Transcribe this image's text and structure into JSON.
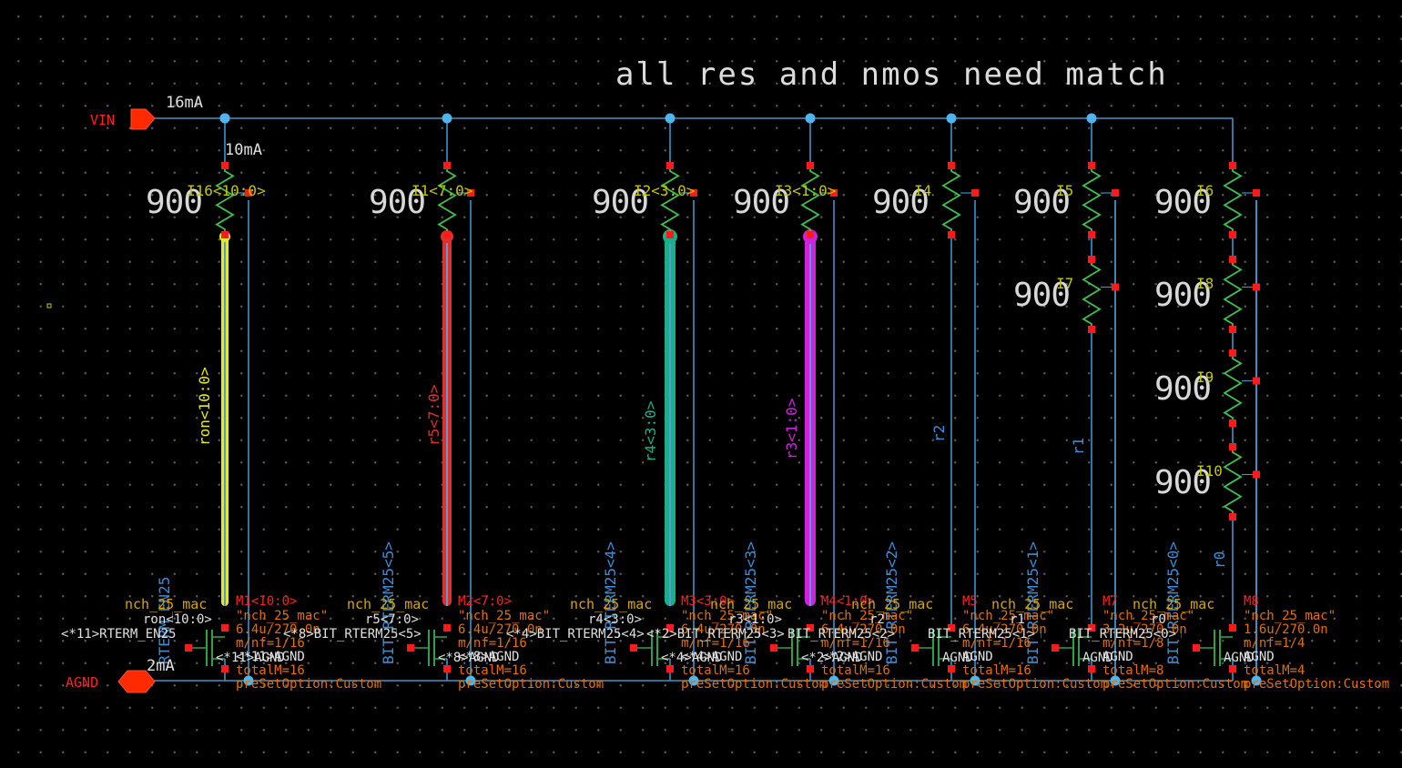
{
  "title": "all res and nmos need match",
  "pins": {
    "vin": "VIN",
    "agnd": "AGND"
  },
  "currents": {
    "top": "16mA",
    "branch": "10mA",
    "bottom": "2mA"
  },
  "colors": {
    "wire": "#3d93c9",
    "node": "#4fb5ef",
    "pin_dot": "#ff1a1a",
    "pin_fill": "#ff2a00",
    "res_value": "#d8d8d8",
    "res_name": "#c4c400",
    "res_body": "#3fbf4f",
    "mos_symbol": "#2ea04a",
    "mos_type": "#d6a600",
    "mos_name": "#ff2020",
    "mos_param": "#e07000",
    "text_white": "#e0e0e0",
    "bit_label": "#3a8fd8",
    "yellow": "#e8e820",
    "red": "#e0302a",
    "teal": "#18b08a",
    "magenta": "#d020e0"
  },
  "resistor_value": "900",
  "resistors": [
    {
      "name": "I16<10:0>",
      "value": "900"
    },
    {
      "name": "I1<7:0>",
      "value": "900"
    },
    {
      "name": "I2<3:0>",
      "value": "900"
    },
    {
      "name": "I3<1:0>",
      "value": "900"
    },
    {
      "name": "I4",
      "value": "900"
    },
    {
      "name": "I5",
      "value": "900"
    },
    {
      "name": "I7",
      "value": "900"
    },
    {
      "name": "I6",
      "value": "900"
    },
    {
      "name": "I8",
      "value": "900"
    },
    {
      "name": "I9",
      "value": "900"
    },
    {
      "name": "I10",
      "value": "900"
    }
  ],
  "net_labels": [
    "ron<10:0>",
    "r5<7:0>",
    "r4<3:0>",
    "r3<1:0>",
    "r2",
    "r1",
    "r0"
  ],
  "gate_nets": [
    "RTERM_EN25",
    "BIT_RTERM25<5>",
    "BIT_RTERM25<4>",
    "BIT_RTERM25<3>",
    "BIT_RTERM25<2>",
    "BIT_RTERM25<1>",
    "BIT_RTERM25<0>"
  ],
  "transistors": [
    {
      "name": "M1<10:0>",
      "type": "nch_25_mac",
      "model": "\"nch_25_mac\"",
      "size": "6.4u/270.0n",
      "mnf": "m/nf=1/16",
      "drain": "ron<10:0>",
      "gate": "<*11>RTERM_EN25",
      "source": "<*11>AGND",
      "bulk": "<*11>AGND",
      "totalM": "totalM=16",
      "preset": "preSetOption:Custom"
    },
    {
      "name": "M2<7:0>",
      "type": "nch_25_mac",
      "model": "\"nch_25_mac\"",
      "size": "6.4u/270.0n",
      "mnf": "m/nf=1/16",
      "drain": "r5<7:0>",
      "gate": "<*8>BIT_RTERM25<5>",
      "source": "<*8>AGND",
      "bulk": "<*8>AGND",
      "totalM": "totalM=16",
      "preset": "preSetOption:Custom"
    },
    {
      "name": "M3<3:0>",
      "type": "nch_25_mac",
      "model": "\"nch_25_mac\"",
      "size": "6.4u/270.0n",
      "mnf": "m/nf=1/16",
      "drain": "r4<3:0>",
      "gate": "<*4>BIT_RTERM25<4>",
      "source": "<*4>AGND",
      "bulk": "<*4>AGND",
      "totalM": "totalM=16",
      "preset": "preSetOption:Custom"
    },
    {
      "name": "M4<1:0>",
      "type": "nch_25_mac",
      "model": "\"nch_25_mac\"",
      "size": "6.4u/270.0n",
      "mnf": "m/nf=1/16",
      "drain": "r3<1:0>",
      "gate": "<*2>BIT_RTERM25<3>",
      "source": "<*2>AGND",
      "bulk": "<*2>AGND",
      "totalM": "totalM=16",
      "preset": "preSetOption:Custom"
    },
    {
      "name": "M5",
      "type": "nch_25_mac",
      "model": "\"nch_25_mac\"",
      "size": "6.4u/270.0n",
      "mnf": "m/nf=1/16",
      "drain": "r2",
      "gate": "BIT_RTERM25<2>",
      "source": "AGND",
      "bulk": "AGND",
      "totalM": "totalM=16",
      "preset": "preSetOption:Custom"
    },
    {
      "name": "M7",
      "type": "nch_25_mac",
      "model": "\"nch_25_mac\"",
      "size": "3.2u/270.0n",
      "mnf": "m/nf=1/8",
      "drain": "r1",
      "gate": "BIT_RTERM25<1>",
      "source": "AGND",
      "bulk": "AGND",
      "totalM": "totalM=8",
      "preset": "preSetOption:Custom"
    },
    {
      "name": "M8",
      "type": "nch_25_mac",
      "model": "\"nch_25_mac\"",
      "size": "1.6u/270.0n",
      "mnf": "m/nf=1/4",
      "drain": "r0",
      "gate": "BIT_RTERM25<0>",
      "source": "AGND",
      "bulk": "AGND",
      "totalM": "totalM=4",
      "preset": "preSetOption:Custom"
    }
  ]
}
